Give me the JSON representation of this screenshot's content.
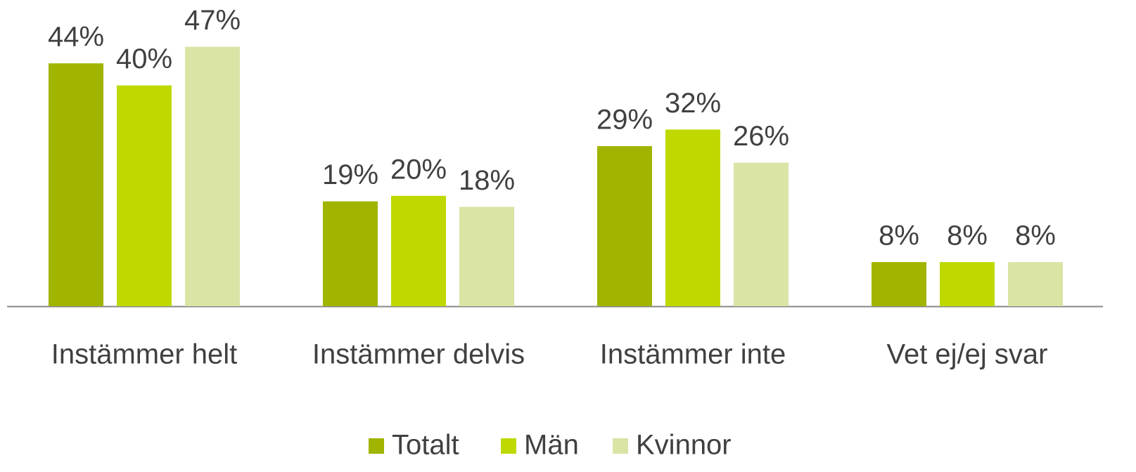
{
  "chart_data": {
    "type": "bar",
    "categories": [
      "Instämmer helt",
      "Instämmer delvis",
      "Instämmer inte",
      "Vet ej/ej svar"
    ],
    "series": [
      {
        "name": "Totalt",
        "color": "#a0b400",
        "values": [
          44,
          19,
          29,
          8
        ],
        "value_labels": [
          "44%",
          "19%",
          "29%",
          "8%"
        ]
      },
      {
        "name": "Män",
        "color": "#bfd900",
        "values": [
          40,
          20,
          32,
          8
        ],
        "value_labels": [
          "40%",
          "20%",
          "32%",
          "8%"
        ]
      },
      {
        "name": "Kvinnor",
        "color": "#d9e4a5",
        "values": [
          47,
          18,
          26,
          8
        ],
        "value_labels": [
          "47%",
          "18%",
          "26%",
          "8%"
        ]
      }
    ],
    "legend": "bottom"
  }
}
